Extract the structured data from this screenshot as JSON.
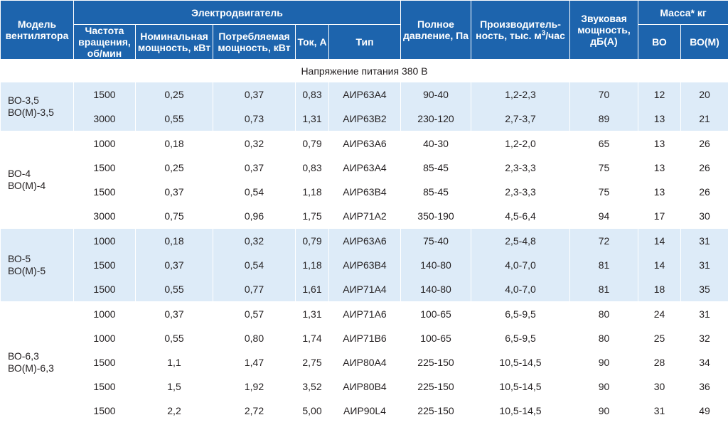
{
  "header": {
    "model": "Модель вентилятора",
    "motor": "Электродвигатель",
    "speed": "Частота вращения, об/мин",
    "nominal_power": "Номинальная мощность, кВт",
    "consumed_power": "Потребляемая мощность, кВт",
    "current": "Ток, А",
    "type": "Тип",
    "pressure": "Полное давление, Па",
    "capacity_main": "Производитель-ность, тыс. м",
    "capacity_exp": "3",
    "capacity_tail": "/час",
    "sound": "Звуковая мощность, дБ(А)",
    "mass": "Масса* кг",
    "mass_vo": "ВО",
    "mass_vom": "ВО(М)"
  },
  "voltage_label": "Напряжение питания 380 В",
  "groups": [
    {
      "model_1": "ВО-3,5",
      "model_2": "ВО(М)-3,5",
      "rows": [
        {
          "speed": "1500",
          "nominal": "0,25",
          "consumed": "0,37",
          "current": "0,83",
          "type": "АИР63А4",
          "pressure": "90-40",
          "capacity": "1,2-2,3",
          "sound": "70",
          "mass_vo": "12",
          "mass_vom": "20"
        },
        {
          "speed": "3000",
          "nominal": "0,55",
          "consumed": "0,73",
          "current": "1,31",
          "type": "АИР63В2",
          "pressure": "230-120",
          "capacity": "2,7-3,7",
          "sound": "89",
          "mass_vo": "13",
          "mass_vom": "21"
        }
      ]
    },
    {
      "model_1": "ВО-4",
      "model_2": "ВО(М)-4",
      "rows": [
        {
          "speed": "1000",
          "nominal": "0,18",
          "consumed": "0,32",
          "current": "0,79",
          "type": "АИР63А6",
          "pressure": "40-30",
          "capacity": "1,2-2,0",
          "sound": "65",
          "mass_vo": "13",
          "mass_vom": "26"
        },
        {
          "speed": "1500",
          "nominal": "0,25",
          "consumed": "0,37",
          "current": "0,83",
          "type": "АИР63А4",
          "pressure": "85-45",
          "capacity": "2,3-3,3",
          "sound": "75",
          "mass_vo": "13",
          "mass_vom": "26"
        },
        {
          "speed": "1500",
          "nominal": "0,37",
          "consumed": "0,54",
          "current": "1,18",
          "type": "АИР63В4",
          "pressure": "85-45",
          "capacity": "2,3-3,3",
          "sound": "75",
          "mass_vo": "13",
          "mass_vom": "26"
        },
        {
          "speed": "3000",
          "nominal": "0,75",
          "consumed": "0,96",
          "current": "1,75",
          "type": "АИР71А2",
          "pressure": "350-190",
          "capacity": "4,5-6,4",
          "sound": "94",
          "mass_vo": "17",
          "mass_vom": "30"
        }
      ]
    },
    {
      "model_1": "ВО-5",
      "model_2": "ВО(М)-5",
      "rows": [
        {
          "speed": "1000",
          "nominal": "0,18",
          "consumed": "0,32",
          "current": "0,79",
          "type": "АИР63А6",
          "pressure": "75-40",
          "capacity": "2,5-4,8",
          "sound": "72",
          "mass_vo": "14",
          "mass_vom": "31"
        },
        {
          "speed": "1500",
          "nominal": "0,37",
          "consumed": "0,54",
          "current": "1,18",
          "type": "АИР63В4",
          "pressure": "140-80",
          "capacity": "4,0-7,0",
          "sound": "81",
          "mass_vo": "14",
          "mass_vom": "31"
        },
        {
          "speed": "1500",
          "nominal": "0,55",
          "consumed": "0,77",
          "current": "1,61",
          "type": "АИР71А4",
          "pressure": "140-80",
          "capacity": "4,0-7,0",
          "sound": "81",
          "mass_vo": "18",
          "mass_vom": "35"
        }
      ]
    },
    {
      "model_1": "ВО-6,3",
      "model_2": "ВО(М)-6,3",
      "rows": [
        {
          "speed": "1000",
          "nominal": "0,37",
          "consumed": "0,57",
          "current": "1,31",
          "type": "АИР71А6",
          "pressure": "100-65",
          "capacity": "6,5-9,5",
          "sound": "80",
          "mass_vo": "24",
          "mass_vom": "31"
        },
        {
          "speed": "1000",
          "nominal": "0,55",
          "consumed": "0,80",
          "current": "1,74",
          "type": "АИР71В6",
          "pressure": "100-65",
          "capacity": "6,5-9,5",
          "sound": "80",
          "mass_vo": "25",
          "mass_vom": "32"
        },
        {
          "speed": "1500",
          "nominal": "1,1",
          "consumed": "1,47",
          "current": "2,75",
          "type": "АИР80А4",
          "pressure": "225-150",
          "capacity": "10,5-14,5",
          "sound": "90",
          "mass_vo": "28",
          "mass_vom": "34"
        },
        {
          "speed": "1500",
          "nominal": "1,5",
          "consumed": "1,92",
          "current": "3,52",
          "type": "АИР80В4",
          "pressure": "225-150",
          "capacity": "10,5-14,5",
          "sound": "90",
          "mass_vo": "30",
          "mass_vom": "36"
        },
        {
          "speed": "1500",
          "nominal": "2,2",
          "consumed": "2,72",
          "current": "5,00",
          "type": "АИР90L4",
          "pressure": "225-150",
          "capacity": "10,5-14,5",
          "sound": "90",
          "mass_vo": "31",
          "mass_vom": "49"
        }
      ]
    }
  ],
  "colors": {
    "header_bg": "#1d64ad",
    "row_blue": "#ddebf8",
    "text": "#231f20"
  }
}
